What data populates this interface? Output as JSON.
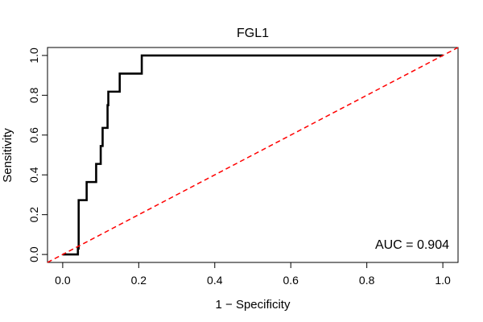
{
  "chart_data": {
    "type": "line",
    "title": "FGL1",
    "xlabel": "1 − Specificity",
    "ylabel": "Sensitivity",
    "xlim": [
      -0.04,
      1.04
    ],
    "ylim": [
      -0.04,
      1.04
    ],
    "x_ticks": [
      0.0,
      0.2,
      0.4,
      0.6,
      0.8,
      1.0
    ],
    "x_tick_labels": [
      "0.0",
      "0.2",
      "0.4",
      "0.6",
      "0.8",
      "1.0"
    ],
    "y_ticks": [
      0.0,
      0.2,
      0.4,
      0.6,
      0.8,
      1.0
    ],
    "y_tick_labels": [
      "0.0",
      "0.2",
      "0.4",
      "0.6",
      "0.8",
      "1.0"
    ],
    "grid": false,
    "annotation": "AUC = 0.904",
    "series": [
      {
        "color": "#000000",
        "style": "solid",
        "x": [
          0.0,
          0.04,
          0.04,
          0.042,
          0.042,
          0.042,
          0.042,
          0.063,
          0.063,
          0.088,
          0.088,
          0.1,
          0.1,
          0.105,
          0.105,
          0.118,
          0.118,
          0.12,
          0.12,
          0.15,
          0.15,
          0.208,
          0.208,
          1.0
        ],
        "y": [
          0.0,
          0.0,
          0.03,
          0.03,
          0.18,
          0.18,
          0.273,
          0.273,
          0.364,
          0.364,
          0.455,
          0.455,
          0.545,
          0.545,
          0.636,
          0.636,
          0.75,
          0.75,
          0.818,
          0.818,
          0.909,
          0.909,
          1.0,
          1.0
        ]
      },
      {
        "color": "#ff0000",
        "style": "dashed",
        "x": [
          -0.04,
          1.04
        ],
        "y": [
          -0.04,
          1.04
        ]
      }
    ]
  }
}
